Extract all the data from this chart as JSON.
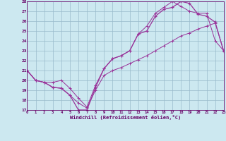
{
  "xlabel": "Windchill (Refroidissement éolien,°C)",
  "x_hours": [
    0,
    1,
    2,
    3,
    4,
    5,
    6,
    7,
    8,
    9,
    10,
    11,
    12,
    13,
    14,
    15,
    16,
    17,
    18,
    19,
    20,
    21,
    22,
    23
  ],
  "line_main": [
    21.0,
    20.0,
    19.8,
    19.3,
    19.2,
    18.5,
    17.0,
    17.0,
    19.3,
    21.2,
    22.2,
    22.5,
    23.0,
    24.7,
    25.0,
    26.5,
    27.2,
    27.4,
    28.0,
    27.8,
    26.7,
    26.5,
    25.9,
    22.9
  ],
  "line_lower": [
    21.0,
    20.0,
    19.8,
    19.3,
    19.2,
    18.5,
    17.7,
    17.2,
    19.0,
    20.5,
    21.0,
    21.3,
    21.7,
    22.1,
    22.5,
    23.0,
    23.5,
    24.0,
    24.5,
    24.8,
    25.2,
    25.5,
    25.8,
    23.0
  ],
  "line_upper": [
    21.0,
    20.0,
    19.8,
    19.8,
    20.0,
    19.2,
    18.2,
    17.3,
    19.5,
    21.2,
    22.2,
    22.5,
    23.0,
    24.7,
    25.5,
    26.8,
    27.4,
    28.0,
    27.5,
    27.0,
    26.8,
    26.8,
    24.0,
    23.0
  ],
  "ylim": [
    17,
    28
  ],
  "xlim": [
    0,
    23
  ],
  "yticks": [
    17,
    18,
    19,
    20,
    21,
    22,
    23,
    24,
    25,
    26,
    27,
    28
  ],
  "xticks": [
    0,
    1,
    2,
    3,
    4,
    5,
    6,
    7,
    8,
    9,
    10,
    11,
    12,
    13,
    14,
    15,
    16,
    17,
    18,
    19,
    20,
    21,
    22,
    23
  ],
  "line_color": "#993399",
  "bg_color": "#cce8f0",
  "grid_color": "#99bbcc",
  "axis_color": "#660066",
  "tick_color": "#660066"
}
